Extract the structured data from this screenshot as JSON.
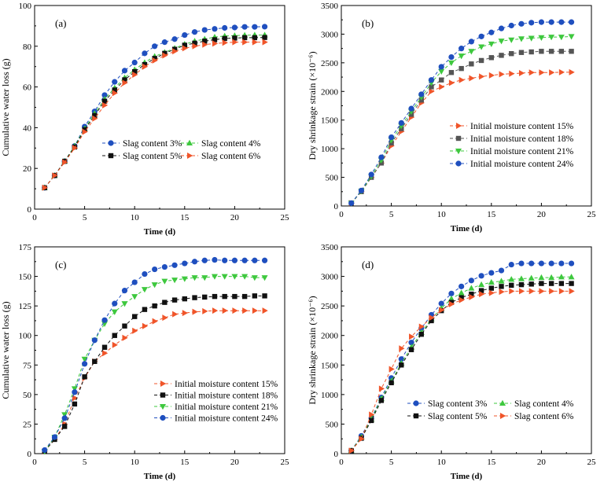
{
  "chart_data": [
    {
      "panel": "(a)",
      "type": "line",
      "xlabel": "Time (d)",
      "ylabel": "Cumulative water loss (g)",
      "xlim": [
        0,
        25
      ],
      "ylim": [
        0,
        100
      ],
      "xticks": [
        0,
        5,
        10,
        15,
        20,
        25
      ],
      "yticks": [
        0,
        20,
        40,
        60,
        80,
        100
      ],
      "legend_position": "center-right",
      "legend_columns": 2,
      "x": [
        1,
        2,
        3,
        4,
        5,
        6,
        7,
        8,
        9,
        10,
        11,
        12,
        13,
        14,
        15,
        16,
        17,
        18,
        19,
        20,
        21,
        22,
        23
      ],
      "series": [
        {
          "name": "Slag content 3%",
          "color": "#1f4fbf",
          "marker": "circle",
          "values": [
            10.5,
            16.5,
            23.5,
            31,
            40.5,
            48,
            56,
            62.5,
            68,
            72,
            76.5,
            80,
            82,
            83.5,
            85.5,
            87,
            88,
            88.5,
            89,
            89.2,
            89.5,
            89.5,
            89.6
          ]
        },
        {
          "name": "Slag content 4%",
          "color": "#3ec83e",
          "marker": "triangle-up",
          "values": [
            10.5,
            16.5,
            23.5,
            31,
            39.5,
            47,
            54,
            59.5,
            64.5,
            68.5,
            72,
            75,
            77,
            79,
            81,
            82.5,
            83.5,
            84.5,
            85,
            85.2,
            85.4,
            85.5,
            85.5
          ]
        },
        {
          "name": "Slag content 5%",
          "color": "#111111",
          "marker": "square",
          "values": [
            10.5,
            16.5,
            23.5,
            30.5,
            39,
            46,
            53,
            58.5,
            63.5,
            67.5,
            71,
            74,
            76.5,
            78.5,
            80.5,
            81.5,
            82.5,
            83.2,
            83.8,
            84,
            84.2,
            84.2,
            84.3
          ]
        },
        {
          "name": "Slag content 6%",
          "color": "#f0552a",
          "marker": "triangle-right",
          "values": [
            10.5,
            16.5,
            23,
            30,
            38,
            44.5,
            51,
            57,
            62,
            66,
            70,
            73,
            75.5,
            77.5,
            79,
            80,
            80.8,
            81.3,
            81.7,
            82,
            82,
            82,
            82
          ]
        }
      ]
    },
    {
      "panel": "(b)",
      "type": "line",
      "xlabel": "Time (d)",
      "ylabel": "Dry shrinkage strain (×10⁻⁶)",
      "xlim": [
        0,
        25
      ],
      "ylim": [
        0,
        3500
      ],
      "xticks": [
        0,
        5,
        10,
        15,
        20,
        25
      ],
      "yticks": [
        0,
        500,
        1000,
        1500,
        2000,
        2500,
        3000,
        3500
      ],
      "legend_position": "center-right",
      "legend_columns": 1,
      "x": [
        1,
        2,
        3,
        4,
        5,
        6,
        7,
        8,
        9,
        10,
        11,
        12,
        13,
        14,
        15,
        16,
        17,
        18,
        19,
        20,
        21,
        22,
        23
      ],
      "series": [
        {
          "name": "Initial moisture content 15%",
          "color": "#f0552a",
          "marker": "triangle-right",
          "values": [
            50,
            250,
            500,
            750,
            1050,
            1300,
            1550,
            1800,
            2000,
            2080,
            2150,
            2200,
            2230,
            2260,
            2280,
            2300,
            2310,
            2320,
            2330,
            2330,
            2330,
            2335,
            2335
          ]
        },
        {
          "name": "Initial moisture content 18%",
          "color": "#555555",
          "marker": "square",
          "values": [
            50,
            250,
            500,
            750,
            1100,
            1350,
            1600,
            1850,
            2080,
            2200,
            2330,
            2400,
            2480,
            2540,
            2590,
            2630,
            2660,
            2680,
            2690,
            2700,
            2700,
            2700,
            2700
          ]
        },
        {
          "name": "Initial moisture content 21%",
          "color": "#3ec83e",
          "marker": "triangle-down",
          "values": [
            50,
            260,
            520,
            800,
            1150,
            1400,
            1650,
            1900,
            2150,
            2350,
            2500,
            2620,
            2700,
            2780,
            2830,
            2880,
            2900,
            2920,
            2930,
            2940,
            2950,
            2950,
            2960
          ]
        },
        {
          "name": "Initial moisture content 24%",
          "color": "#1f4fbf",
          "marker": "circle",
          "values": [
            50,
            270,
            550,
            850,
            1200,
            1450,
            1700,
            1950,
            2200,
            2430,
            2600,
            2750,
            2870,
            2960,
            3030,
            3100,
            3150,
            3180,
            3200,
            3210,
            3210,
            3210,
            3210
          ]
        }
      ]
    },
    {
      "panel": "(c)",
      "type": "line",
      "xlabel": "Time (d)",
      "ylabel": "Cumulative water loss (g)",
      "xlim": [
        0,
        25
      ],
      "ylim": [
        0,
        175
      ],
      "xticks": [
        0,
        5,
        10,
        15,
        20,
        25
      ],
      "yticks": [
        0,
        25,
        50,
        75,
        100,
        125,
        150,
        175
      ],
      "legend_position": "lower-right",
      "legend_columns": 1,
      "x": [
        1,
        2,
        3,
        4,
        5,
        6,
        7,
        8,
        9,
        10,
        11,
        12,
        13,
        14,
        15,
        16,
        17,
        18,
        19,
        20,
        21,
        22,
        23
      ],
      "series": [
        {
          "name": "Initial moisture content 15%",
          "color": "#f0552a",
          "marker": "triangle-right",
          "values": [
            2,
            12,
            25,
            47,
            64,
            78,
            85,
            92,
            98,
            104,
            108,
            112,
            115,
            118,
            119,
            120,
            120.5,
            121,
            121,
            121,
            121,
            121,
            121
          ]
        },
        {
          "name": "Initial moisture content 18%",
          "color": "#111111",
          "marker": "square",
          "values": [
            2,
            12,
            23,
            42,
            65,
            78,
            90,
            100,
            108,
            116,
            122,
            125,
            128,
            130,
            131,
            132,
            132.5,
            133,
            133,
            133,
            133,
            133.5,
            133.5
          ]
        },
        {
          "name": "Initial moisture content 21%",
          "color": "#3ec83e",
          "marker": "triangle-down",
          "values": [
            2,
            14,
            33,
            55,
            80,
            96,
            110,
            120,
            127,
            133,
            139,
            143,
            146,
            147,
            148,
            149,
            149,
            150,
            150,
            150,
            150,
            149,
            149
          ]
        },
        {
          "name": "Initial moisture content 24%",
          "color": "#1f4fbf",
          "marker": "circle",
          "values": [
            3,
            14,
            30,
            52,
            76,
            96,
            113,
            127,
            138,
            145,
            152,
            156,
            158,
            159.5,
            161,
            162.5,
            163.5,
            164,
            163.5,
            163.5,
            163.5,
            163.5,
            163.5
          ]
        }
      ]
    },
    {
      "panel": "(d)",
      "type": "line",
      "xlabel": "Time (d)",
      "ylabel": "Dry shrinkage strain (×10⁻⁶)",
      "xlim": [
        0,
        25
      ],
      "ylim": [
        0,
        3500
      ],
      "xticks": [
        0,
        5,
        10,
        15,
        20,
        25
      ],
      "yticks": [
        0,
        500,
        1000,
        1500,
        2000,
        2500,
        3000,
        3500
      ],
      "legend_position": "lower-right",
      "legend_columns": 2,
      "x": [
        1,
        2,
        3,
        4,
        5,
        6,
        7,
        8,
        9,
        10,
        11,
        12,
        13,
        14,
        15,
        16,
        17,
        18,
        19,
        20,
        21,
        22,
        23
      ],
      "series": [
        {
          "name": "Slag content 3%",
          "color": "#1f4fbf",
          "marker": "circle",
          "values": [
            50,
            300,
            600,
            950,
            1280,
            1600,
            1880,
            2120,
            2350,
            2540,
            2710,
            2830,
            2930,
            3010,
            3060,
            3100,
            3200,
            3220,
            3220,
            3220,
            3220,
            3220,
            3220
          ]
        },
        {
          "name": "Slag content 4%",
          "color": "#3ec83e",
          "marker": "triangle-up",
          "values": [
            50,
            280,
            580,
            930,
            1230,
            1530,
            1800,
            2050,
            2280,
            2460,
            2620,
            2720,
            2800,
            2860,
            2900,
            2920,
            2950,
            2960,
            2970,
            2980,
            2980,
            2990,
            2990
          ]
        },
        {
          "name": "Slag content 5%",
          "color": "#111111",
          "marker": "square",
          "values": [
            50,
            260,
            560,
            900,
            1200,
            1500,
            1760,
            2020,
            2250,
            2420,
            2560,
            2640,
            2700,
            2760,
            2800,
            2830,
            2850,
            2860,
            2870,
            2880,
            2880,
            2880,
            2880
          ]
        },
        {
          "name": "Slag content 6%",
          "color": "#f0552a",
          "marker": "triangle-right",
          "values": [
            50,
            250,
            660,
            1100,
            1430,
            1780,
            1980,
            2150,
            2300,
            2430,
            2530,
            2600,
            2650,
            2700,
            2720,
            2740,
            2750,
            2750,
            2750,
            2750,
            2750,
            2750,
            2750
          ]
        }
      ]
    }
  ]
}
